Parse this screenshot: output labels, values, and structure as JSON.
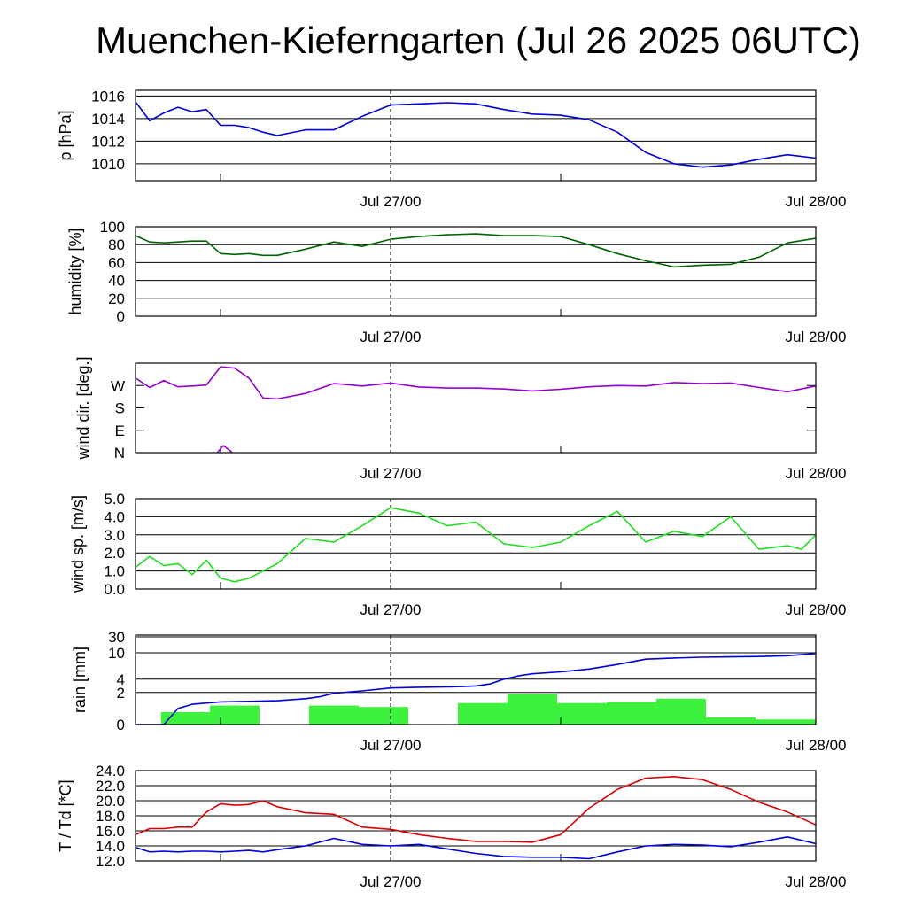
{
  "title": "Muenchen-Kieferngarten (Jul 26 2025 06UTC)",
  "time_labels": [
    "Jul 27/00",
    "Jul 28/00"
  ],
  "chart_data": [
    {
      "type": "line",
      "ylabel": "p [hPa]",
      "ylim": [
        1008.5,
        1016.5
      ],
      "yticks": [
        1016,
        1014,
        1012,
        1010
      ],
      "ytick_labels": [
        "1016",
        "1014",
        "1012",
        "1010"
      ],
      "grid": true,
      "x_hours": [
        0,
        1,
        2,
        3,
        4,
        5,
        6,
        7,
        8,
        9,
        10,
        12,
        14,
        16,
        18,
        20,
        22,
        24,
        26,
        28,
        30,
        32,
        34,
        36,
        38,
        40,
        42,
        44,
        46,
        48
      ],
      "series": [
        {
          "color": "#0000dd",
          "values": [
            1015.5,
            1013.8,
            1014.5,
            1015.0,
            1014.6,
            1014.8,
            1013.4,
            1013.4,
            1013.2,
            1012.8,
            1012.5,
            1013.0,
            1013.0,
            1014.2,
            1015.2,
            1015.3,
            1015.4,
            1015.3,
            1014.8,
            1014.4,
            1014.3,
            1013.9,
            1012.8,
            1011.0,
            1010.0,
            1009.7,
            1009.9,
            1010.4,
            1010.8,
            1010.5
          ]
        }
      ]
    },
    {
      "type": "line",
      "ylabel": "humidity [%]",
      "ylim": [
        0,
        100
      ],
      "yticks": [
        100,
        80,
        60,
        40,
        20,
        0
      ],
      "ytick_labels": [
        "100",
        "80",
        "60",
        "40",
        "20",
        "0"
      ],
      "grid": true,
      "x_hours": [
        0,
        1,
        2,
        3,
        4,
        5,
        6,
        7,
        8,
        9,
        10,
        12,
        14,
        16,
        18,
        20,
        22,
        24,
        26,
        28,
        30,
        32,
        34,
        36,
        38,
        40,
        42,
        44,
        46,
        48
      ],
      "series": [
        {
          "color": "#006400",
          "values": [
            90,
            83,
            82,
            83,
            84,
            84,
            70,
            69,
            70,
            68,
            68,
            75,
            83,
            78,
            86,
            89,
            91,
            92,
            90,
            90,
            89,
            80,
            70,
            62,
            55,
            57,
            58,
            66,
            82,
            87
          ]
        }
      ]
    },
    {
      "type": "line",
      "ylabel": "wind dir. [deg.]",
      "ylim": [
        0,
        360
      ],
      "yticks": [
        270,
        180,
        90,
        0
      ],
      "ytick_labels": [
        "W",
        "S",
        "E",
        "N"
      ],
      "grid": false,
      "x_hours": [
        0,
        1,
        2,
        3,
        4,
        5,
        6,
        7,
        8,
        9,
        10,
        12,
        14,
        16,
        18,
        20,
        22,
        24,
        26,
        28,
        30,
        32,
        34,
        36,
        38,
        40,
        42,
        44,
        46,
        48
      ],
      "series": [
        {
          "color": "#9400d3",
          "values": [
            300,
            262,
            290,
            265,
            268,
            272,
            345,
            340,
            300,
            220,
            216,
            238,
            278,
            268,
            280,
            264,
            260,
            260,
            256,
            248,
            255,
            265,
            270,
            268,
            282,
            278,
            280,
            262,
            245,
            268
          ]
        },
        {
          "color": "#9400d3",
          "x_hours": [
            5.8,
            6.2,
            6.8
          ],
          "values": [
            2,
            28,
            2
          ]
        }
      ]
    },
    {
      "type": "line",
      "ylabel": "wind sp. [m/s]",
      "ylim": [
        0,
        5
      ],
      "yticks": [
        5.0,
        4.0,
        3.0,
        2.0,
        1.0,
        0.0
      ],
      "ytick_labels": [
        "5.0",
        "4.0",
        "3.0",
        "2.0",
        "1.0",
        "0.0"
      ],
      "grid": true,
      "x_hours": [
        0,
        1,
        2,
        3,
        4,
        5,
        6,
        7,
        8,
        9,
        10,
        12,
        14,
        16,
        18,
        20,
        22,
        24,
        26,
        28,
        30,
        32,
        34,
        36,
        38,
        40,
        42,
        44,
        46,
        47,
        48
      ],
      "series": [
        {
          "color": "#22dd22",
          "values": [
            1.2,
            1.8,
            1.3,
            1.4,
            0.8,
            1.6,
            0.6,
            0.4,
            0.6,
            1.0,
            1.4,
            2.8,
            2.6,
            3.5,
            4.5,
            4.2,
            3.5,
            3.7,
            2.5,
            2.3,
            2.6,
            3.5,
            4.3,
            2.6,
            3.2,
            2.9,
            4.0,
            2.2,
            2.4,
            2.2,
            3.0
          ]
        }
      ]
    },
    {
      "type": "bar",
      "ylabel": "rain [mm]",
      "ytick_labels": [
        "30",
        "10",
        "4",
        "2",
        "0"
      ],
      "ytick_values": [
        30,
        10,
        4,
        2,
        0
      ],
      "y_scale": "sqrt",
      "grid": true,
      "bars": {
        "color": "#3df23d",
        "x_start_hours": [
          1.8,
          5.25,
          12.25,
          15.75,
          22.75,
          26.25,
          29.75,
          33.25,
          36.75,
          40.25,
          43.75
        ],
        "x_end_hours": [
          5.25,
          8.75,
          15.75,
          19.25,
          26.25,
          29.75,
          33.25,
          36.75,
          40.25,
          43.75,
          48
        ],
        "values": [
          0.3,
          0.7,
          0.7,
          0.6,
          0.9,
          1.8,
          0.9,
          1.0,
          1.3,
          0.1,
          0.05
        ]
      },
      "x_hours": [
        0,
        2,
        3,
        4,
        6,
        8,
        10,
        12,
        13,
        14,
        16,
        18,
        20,
        22,
        23,
        24,
        25,
        26,
        27,
        28,
        30,
        32,
        34,
        36,
        38,
        40,
        42,
        44,
        46,
        48
      ],
      "series": [
        {
          "color": "#0000dd",
          "values": [
            0,
            0,
            0.5,
            0.8,
            1.0,
            1.05,
            1.1,
            1.3,
            1.5,
            1.9,
            2.2,
            2.6,
            2.7,
            2.75,
            2.8,
            2.9,
            3.2,
            4.0,
            4.6,
            5.0,
            5.4,
            6.0,
            7.0,
            8.3,
            8.6,
            8.8,
            8.9,
            9.0,
            9.2,
            9.8
          ]
        }
      ]
    },
    {
      "type": "line",
      "ylabel": "T / Td [*C]",
      "ylim": [
        12,
        24
      ],
      "yticks": [
        24,
        22,
        20,
        18,
        16,
        14,
        12
      ],
      "ytick_labels": [
        "24.0",
        "22.0",
        "20.0",
        "18.0",
        "16.0",
        "14.0",
        "12.0"
      ],
      "grid": true,
      "x_hours": [
        0,
        1,
        2,
        3,
        4,
        5,
        6,
        7,
        8,
        9,
        10,
        12,
        14,
        16,
        18,
        20,
        22,
        24,
        26,
        28,
        30,
        32,
        34,
        36,
        38,
        40,
        42,
        44,
        46,
        48
      ],
      "series": [
        {
          "color": "#dd0000",
          "values": [
            15.5,
            16.3,
            16.3,
            16.5,
            16.5,
            18.5,
            19.6,
            19.4,
            19.5,
            20.0,
            19.2,
            18.4,
            18.2,
            16.5,
            16.2,
            15.5,
            15.0,
            14.6,
            14.6,
            14.5,
            15.5,
            19.0,
            21.5,
            23.0,
            23.2,
            22.8,
            21.5,
            19.8,
            18.5,
            16.8
          ]
        },
        {
          "color": "#0000dd",
          "values": [
            13.8,
            13.2,
            13.3,
            13.2,
            13.3,
            13.3,
            13.2,
            13.3,
            13.4,
            13.2,
            13.5,
            14.0,
            15.0,
            14.2,
            14.0,
            14.2,
            13.6,
            13.0,
            12.6,
            12.5,
            12.5,
            12.3,
            13.2,
            14.0,
            14.2,
            14.1,
            13.9,
            14.5,
            15.2,
            14.3
          ]
        }
      ]
    }
  ]
}
